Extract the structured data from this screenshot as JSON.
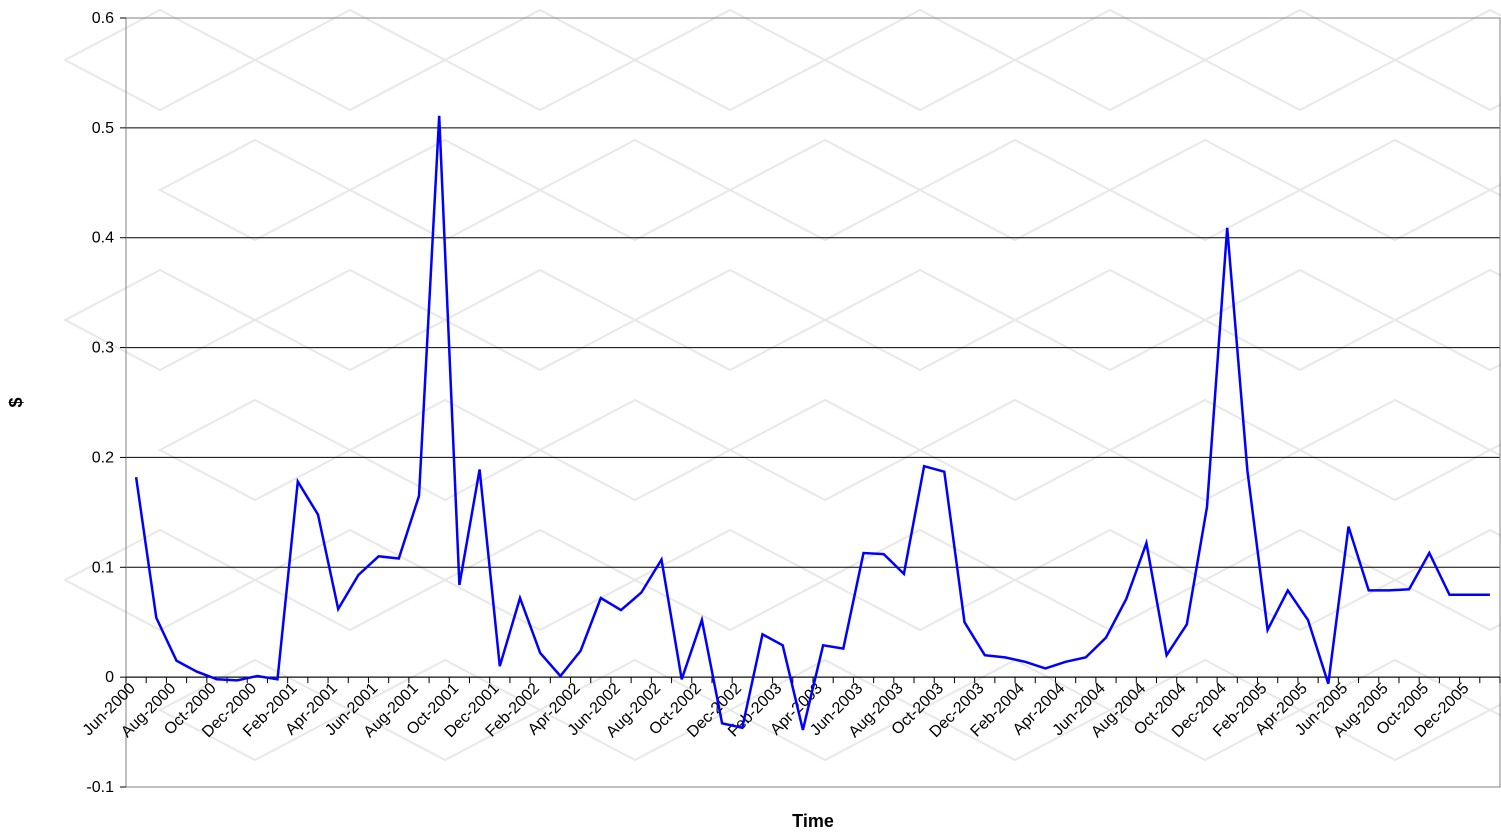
{
  "chart_data": {
    "type": "line",
    "title": "",
    "xlabel": "Time",
    "ylabel": "$",
    "ylim": [
      -0.1,
      0.6
    ],
    "yticks": [
      "0.6",
      "0.5",
      "0.4",
      "0.3",
      "0.2",
      "0.1",
      "0",
      "-0.1"
    ],
    "ytick_values": [
      0.6,
      0.5,
      0.4,
      0.3,
      0.2,
      0.1,
      0,
      -0.1
    ],
    "grid": "horizontal",
    "legend": "none",
    "xtick_labels": [
      "Jun-2000",
      "Aug-2000",
      "Oct-2000",
      "Dec-2000",
      "Feb-2001",
      "Apr-2001",
      "Jun-2001",
      "Aug-2001",
      "Oct-2001",
      "Dec-2001",
      "Feb-2002",
      "Apr-2002",
      "Jun-2002",
      "Aug-2002",
      "Oct-2002",
      "Dec-2002",
      "Feb-2003",
      "Apr-2003",
      "Jun-2003",
      "Aug-2003",
      "Oct-2003",
      "Dec-2003",
      "Feb-2004",
      "Apr-2004",
      "Jun-2004",
      "Aug-2004",
      "Oct-2004",
      "Dec-2004",
      "Feb-2005",
      "Apr-2005",
      "Jun-2005",
      "Aug-2005",
      "Oct-2005",
      "Dec-2005"
    ],
    "x": [
      "Jun-2000",
      "Jul-2000",
      "Aug-2000",
      "Sep-2000",
      "Oct-2000",
      "Nov-2000",
      "Dec-2000",
      "Jan-2001",
      "Feb-2001",
      "Mar-2001",
      "Apr-2001",
      "May-2001",
      "Jun-2001",
      "Jul-2001",
      "Aug-2001",
      "Sep-2001",
      "Oct-2001",
      "Nov-2001",
      "Dec-2001",
      "Jan-2002",
      "Feb-2002",
      "Mar-2002",
      "Apr-2002",
      "May-2002",
      "Jun-2002",
      "Jul-2002",
      "Aug-2002",
      "Sep-2002",
      "Oct-2002",
      "Nov-2002",
      "Dec-2002",
      "Jan-2003",
      "Feb-2003",
      "Mar-2003",
      "Apr-2003",
      "May-2003",
      "Jun-2003",
      "Jul-2003",
      "Aug-2003",
      "Sep-2003",
      "Oct-2003",
      "Nov-2003",
      "Dec-2003",
      "Jan-2004",
      "Feb-2004",
      "Mar-2004",
      "Apr-2004",
      "May-2004",
      "Jun-2004",
      "Jul-2004",
      "Aug-2004",
      "Sep-2004",
      "Oct-2004",
      "Nov-2004",
      "Dec-2004",
      "Jan-2005",
      "Feb-2005",
      "Mar-2005",
      "Apr-2005",
      "May-2005",
      "Jun-2005",
      "Jul-2005",
      "Aug-2005",
      "Sep-2005",
      "Oct-2005",
      "Nov-2005",
      "Dec-2005",
      "Jan-2006"
    ],
    "series": [
      {
        "color": "#0000ff",
        "values": [
          0.182,
          0.054,
          0.015,
          0.005,
          -0.002,
          -0.003,
          0.001,
          -0.002,
          0.178,
          0.148,
          0.062,
          0.093,
          0.11,
          0.108,
          0.165,
          0.511,
          0.084,
          0.189,
          0.01,
          0.072,
          0.022,
          0.001,
          0.024,
          0.072,
          0.061,
          0.077,
          0.107,
          -0.002,
          0.052,
          -0.042,
          -0.046,
          0.039,
          0.029,
          -0.048,
          0.029,
          0.026,
          0.113,
          0.112,
          0.094,
          0.192,
          0.187,
          0.05,
          0.02,
          0.018,
          0.014,
          0.008,
          0.014,
          0.018,
          0.036,
          0.071,
          0.122,
          0.02,
          0.048,
          0.155,
          0.409,
          0.188,
          0.043,
          0.079,
          0.052,
          -0.006,
          0.137,
          0.079,
          0.079,
          0.08,
          0.113,
          0.075,
          0.075,
          0.075
        ]
      }
    ]
  },
  "colors": {
    "line": "#0000ff",
    "grid": "#000000",
    "background": "#ffffff",
    "watermark": "#e8e8e8"
  }
}
